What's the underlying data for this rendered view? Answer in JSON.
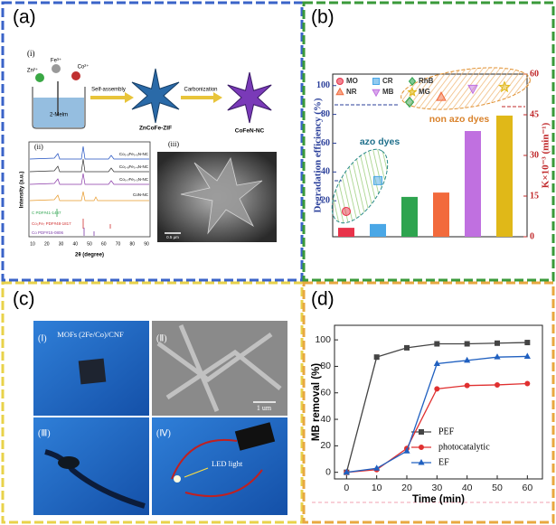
{
  "panel_a": {
    "label": "(a)",
    "scheme": {
      "label": "(i)",
      "ions": [
        "Zn²⁺",
        "Fe³⁺",
        "Co²⁺"
      ],
      "beaker": "2-Melm",
      "step1": "Self-assembly",
      "product1": "ZnCoFe-ZIF",
      "step2": "Carbonization",
      "product2": "CoFeN-NC"
    },
    "xrd": {
      "label": "(ii)",
      "samples": [
        "Co₀.₅Fe₀.₅N-NC",
        "Co₀.₆Fe₀.₄N-NC",
        "Co₀.₇Fe₀.₃N-NC",
        "CoN-NC"
      ],
      "references": [
        "C PDF#41-1487",
        "Co₃Fe₇ PDF#48-1817",
        "Co PDF#15-0806"
      ],
      "x_label": "2θ (degree)",
      "y_label": "Intensity (a.u.)",
      "x_ticks": [
        10,
        20,
        30,
        40,
        50,
        60,
        70,
        80,
        90
      ]
    },
    "sem": {
      "label": "(iii)",
      "scale": "0.5 μm"
    }
  },
  "panel_c": {
    "label": "(c)",
    "photos": [
      {
        "label": "(Ⅰ)",
        "caption": "MOFs (2Fe/Co)/CNF"
      },
      {
        "label": "(Ⅱ)",
        "caption": "1 um"
      },
      {
        "label": "(Ⅲ)"
      },
      {
        "label": "(Ⅳ)",
        "caption": "LED light"
      }
    ]
  },
  "chart_data": [
    {
      "type": "bar",
      "label": "(b)",
      "categories": [
        "MO",
        "CR",
        "RhB",
        "NR",
        "MB",
        "MG"
      ],
      "colors": [
        "#e8334a",
        "#4aa7e6",
        "#2ea44f",
        "#f26a3c",
        "#c070e0",
        "#e0b818"
      ],
      "markers": [
        "circle",
        "square",
        "diamond",
        "triangle",
        "triangle-down",
        "star"
      ],
      "series": [
        {
          "type": "scatter",
          "values": [
            12.6,
            34,
            88.5,
            92,
            98,
            99
          ]
        },
        {
          "type": "bar",
          "axis": "y2",
          "values": [
            3.3,
            4.7,
            14.7,
            16.3,
            39,
            44.7
          ]
        }
      ],
      "y_label": "Degradation efficiency (%)",
      "y2_label": "K×10⁻³ (min⁻¹)",
      "ylim": [
        -5,
        108
      ],
      "yticks": [
        20,
        40,
        60,
        80,
        100
      ],
      "y2lim": [
        0,
        60
      ],
      "y2ticks": [
        0,
        15,
        30,
        45,
        60
      ],
      "annotations": [
        "azo dyes",
        "non azo dyes"
      ],
      "legend": "upper-left"
    },
    {
      "type": "line",
      "label": "(d)",
      "x": [
        0,
        10,
        20,
        30,
        40,
        50,
        60
      ],
      "series": [
        {
          "name": "PEF",
          "color": "#444444",
          "marker": "square",
          "values": [
            0,
            87,
            94,
            97,
            97,
            97.5,
            98
          ]
        },
        {
          "name": "photocatalytic",
          "color": "#e03030",
          "marker": "circle",
          "values": [
            0,
            2,
            18,
            63,
            65.5,
            66,
            67
          ]
        },
        {
          "name": "EF",
          "color": "#2060c0",
          "marker": "triangle",
          "values": [
            0,
            3,
            16,
            82,
            84.5,
            87,
            87.5
          ]
        }
      ],
      "x_label": "Time (min)",
      "y_label": "MB removal (%)",
      "xlim": [
        -4,
        65
      ],
      "ylim": [
        -5,
        111
      ],
      "xticks": [
        0,
        10,
        20,
        30,
        40,
        50,
        60
      ],
      "yticks": [
        0,
        20,
        40,
        60,
        80,
        100
      ],
      "legend": "center-right"
    }
  ]
}
